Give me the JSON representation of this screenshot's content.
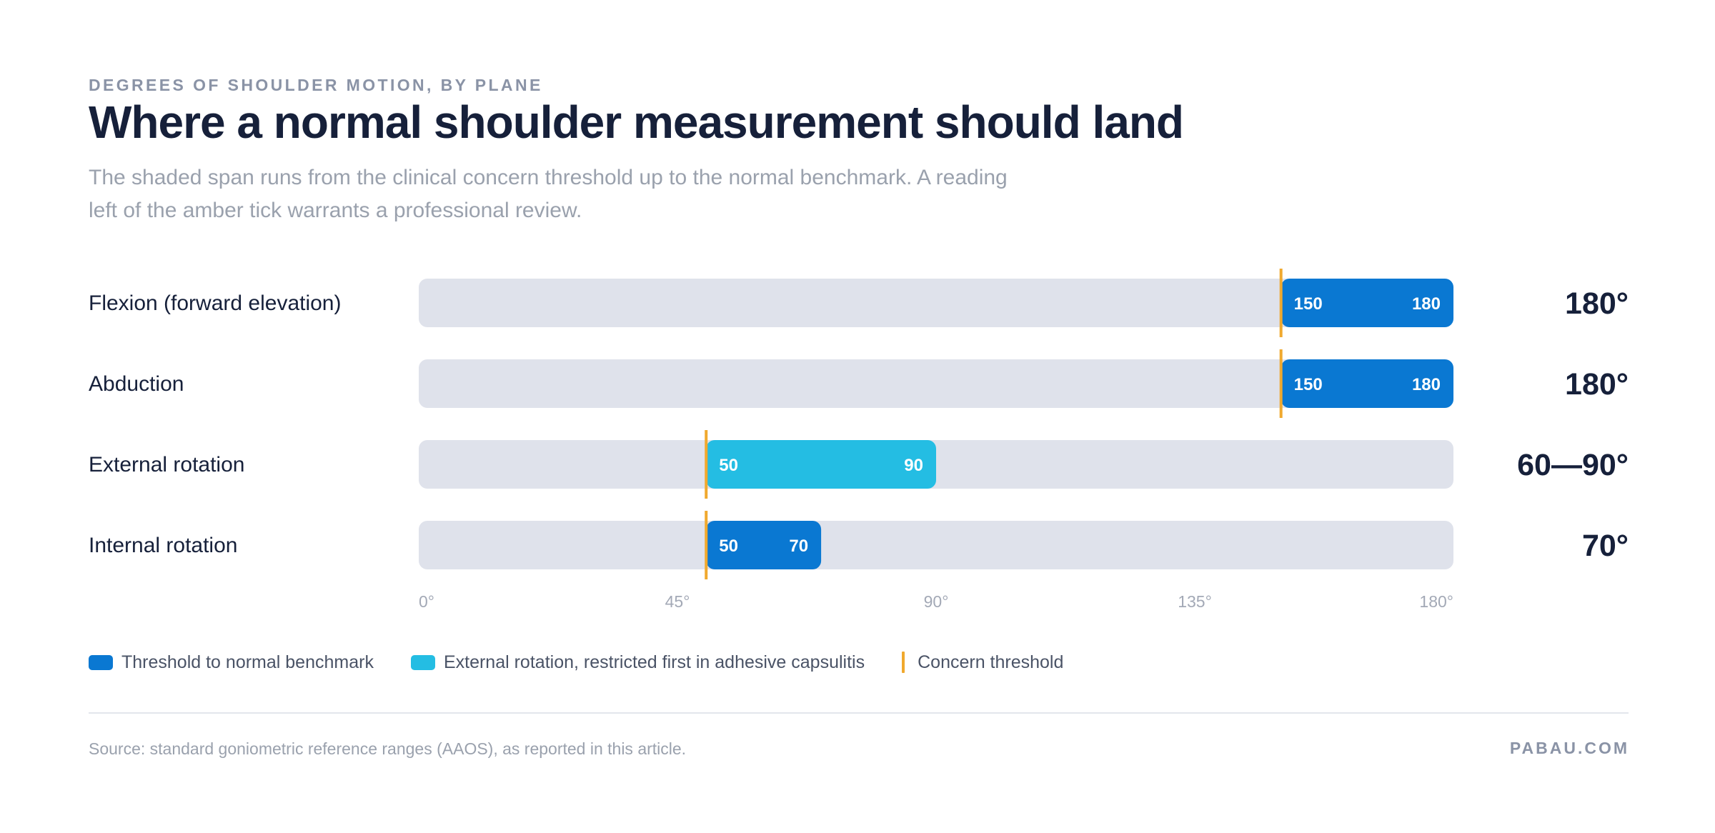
{
  "header": {
    "eyebrow": "DEGREES OF SHOULDER MOTION, BY PLANE",
    "title": "Where a normal shoulder measurement should land",
    "subtitle": "The shaded span runs from the clinical concern threshold up to the normal benchmark. A reading left of the amber tick warrants a professional review."
  },
  "chart_data": {
    "type": "bar",
    "subtype": "range",
    "axis": {
      "min": 0,
      "max": 180,
      "ticks": [
        0,
        45,
        90,
        135,
        180
      ],
      "tick_labels": [
        "0°",
        "45°",
        "90°",
        "135°",
        "180°"
      ]
    },
    "grid": false,
    "rows": [
      {
        "label": "Flexion (forward elevation)",
        "start": 150,
        "end": 180,
        "start_label": "150",
        "end_label": "180",
        "threshold": 150,
        "benchmark": "180°",
        "color": "#0a78d2"
      },
      {
        "label": "Abduction",
        "start": 150,
        "end": 180,
        "start_label": "150",
        "end_label": "180",
        "threshold": 150,
        "benchmark": "180°",
        "color": "#0a78d2"
      },
      {
        "label": "External rotation",
        "start": 50,
        "end": 90,
        "start_label": "50",
        "end_label": "90",
        "threshold": 50,
        "benchmark": "60—90°",
        "color": "#24bde3"
      },
      {
        "label": "Internal rotation",
        "start": 50,
        "end": 70,
        "start_label": "50",
        "end_label": "70",
        "threshold": 50,
        "benchmark": "70°",
        "color": "#0a78d2"
      }
    ],
    "legend": [
      {
        "label": "Threshold to normal benchmark",
        "color": "#0a78d2",
        "shape": "swatch"
      },
      {
        "label": "External rotation, restricted first in adhesive capsulitis",
        "color": "#24bde3",
        "shape": "swatch"
      },
      {
        "label": "Concern threshold",
        "color": "#f0a92e",
        "shape": "tick"
      }
    ],
    "legend_position": "bottom-left",
    "track_color": "#dfe2eb",
    "threshold_color": "#f0a92e"
  },
  "footer": {
    "source": "Source: standard goniometric reference ranges (AAOS), as reported in this article.",
    "brand": "PABAU.COM"
  }
}
